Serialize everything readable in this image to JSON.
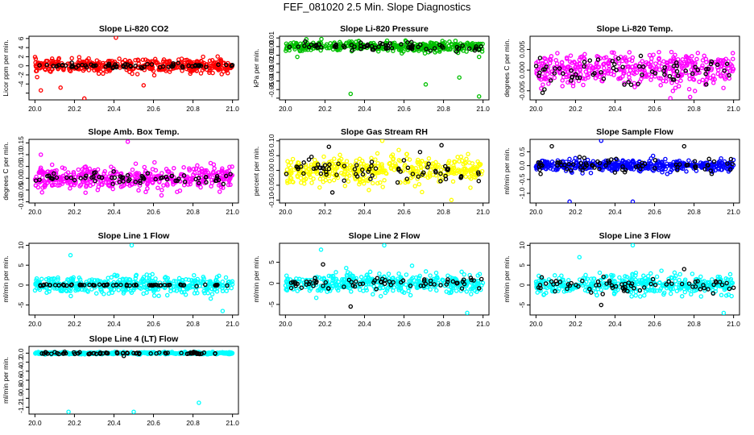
{
  "title": "FEF_081020  2.5 Min. Slope Diagnostics",
  "chart_data": [
    {
      "type": "scatter",
      "title": "Slope Li-820 CO2",
      "ylabel": "Licor ppm per min.",
      "xlim": [
        19.97,
        21.03
      ],
      "ylim": [
        -7.5,
        6.5
      ],
      "xticks": [
        20.0,
        20.2,
        20.4,
        20.6,
        20.8,
        21.0
      ],
      "yticks": [
        -6,
        -4,
        -2,
        0,
        2,
        4,
        6
      ],
      "ytick_labels": [
        "",
        "-4",
        "-2",
        "0",
        "2",
        "4",
        "6"
      ],
      "main_color": "#ff0000",
      "main_spread": 1.3,
      "main_outliers": [
        [
          20.25,
          -7.2
        ],
        [
          20.41,
          6.2
        ],
        [
          20.03,
          -5.4
        ],
        [
          20.13,
          -4.8
        ],
        [
          20.55,
          -4.3
        ]
      ],
      "black_spread": 0.5,
      "black_outliers": []
    },
    {
      "type": "scatter",
      "title": "Slope Li-820 Pressure",
      "ylabel": "kPa per min.",
      "xlim": [
        19.97,
        21.03
      ],
      "ylim": [
        -0.062,
        0.012
      ],
      "xticks": [
        20.0,
        20.2,
        20.4,
        20.6,
        20.8,
        21.0
      ],
      "yticks": [
        -0.06,
        -0.05,
        -0.04,
        -0.03,
        -0.02,
        -0.01,
        0.0,
        0.01
      ],
      "ytick_labels": [
        "",
        "-0.05",
        "-0.04",
        "-0.03",
        "-0.02",
        "-0.01",
        "0.00",
        "0.01"
      ],
      "main_color": "#00c000",
      "main_spread": 0.005,
      "main_outliers": [
        [
          20.33,
          -0.055
        ],
        [
          20.71,
          -0.044
        ],
        [
          20.98,
          -0.058
        ],
        [
          20.88,
          -0.036
        ],
        [
          20.06,
          -0.012
        ],
        [
          20.98,
          -0.012
        ]
      ],
      "black_spread": 0.004,
      "black_outliers": [
        [
          20.1,
          0.006
        ]
      ]
    },
    {
      "type": "scatter",
      "title": "Slope Li-820 Temp.",
      "ylabel": "degrees C per min.",
      "xlim": [
        19.97,
        21.03
      ],
      "ylim": [
        -0.0072,
        0.0082
      ],
      "xticks": [
        20.0,
        20.2,
        20.4,
        20.6,
        20.8,
        21.0
      ],
      "yticks": [
        -0.005,
        0.0,
        0.005
      ],
      "ytick_labels": [
        "-0.005",
        "0.000",
        "0.005"
      ],
      "main_color": "#ff00ff",
      "main_spread": 0.0035,
      "main_outliers": [
        [
          20.68,
          -0.0068
        ],
        [
          20.78,
          -0.0065
        ]
      ],
      "black_spread": 0.003,
      "black_outliers": []
    },
    {
      "type": "scatter",
      "title": "Slope Amb. Box Temp.",
      "ylabel": "degrees C per min.",
      "xlim": [
        19.97,
        21.03
      ],
      "ylim": [
        -0.105,
        0.165
      ],
      "xticks": [
        20.0,
        20.2,
        20.4,
        20.6,
        20.8,
        21.0
      ],
      "yticks": [
        -0.1,
        -0.05,
        0.0,
        0.05,
        0.1,
        0.15
      ],
      "ytick_labels": [
        "-0.10",
        "-0.05",
        "0.00",
        "0.05",
        "0.10",
        "0.15"
      ],
      "main_color": "#ff00ff",
      "main_spread": 0.045,
      "main_outliers": [
        [
          20.47,
          0.155
        ],
        [
          20.03,
          0.1
        ]
      ],
      "black_spread": 0.025,
      "black_outliers": []
    },
    {
      "type": "scatter",
      "title": "Slope Gas Stream RH",
      "ylabel": "percent per min.",
      "xlim": [
        19.97,
        21.03
      ],
      "ylim": [
        -0.11,
        0.105
      ],
      "xticks": [
        20.0,
        20.2,
        20.4,
        20.6,
        20.8,
        21.0
      ],
      "yticks": [
        -0.1,
        -0.05,
        0.0,
        0.05,
        0.1
      ],
      "ytick_labels": [
        "-0.10",
        "-0.05",
        "0.00",
        "0.05",
        "0.10"
      ],
      "main_color": "#ffff00",
      "main_spread": 0.04,
      "main_outliers": [
        [
          20.49,
          0.1
        ],
        [
          20.84,
          -0.1
        ]
      ],
      "black_spread": 0.04,
      "black_outliers": [
        [
          20.79,
          0.085
        ],
        [
          20.22,
          0.08
        ]
      ]
    },
    {
      "type": "scatter",
      "title": "Slope Sample Flow",
      "ylabel": "ml/min per min.",
      "xlim": [
        19.97,
        21.03
      ],
      "ylim": [
        -1.35,
        0.95
      ],
      "xticks": [
        20.0,
        20.2,
        20.4,
        20.6,
        20.8,
        21.0
      ],
      "yticks": [
        -1.0,
        -0.5,
        0.0,
        0.5
      ],
      "ytick_labels": [
        "-1.0",
        "-0.5",
        "0.0",
        "0.5"
      ],
      "main_color": "#0000ff",
      "main_spread": 0.18,
      "main_outliers": [
        [
          20.17,
          -1.3
        ],
        [
          20.33,
          0.9
        ],
        [
          20.49,
          -1.3
        ]
      ],
      "black_spread": 0.25,
      "black_outliers": [
        [
          20.08,
          0.7
        ],
        [
          20.75,
          0.7
        ]
      ]
    },
    {
      "type": "scatter",
      "title": "Slope Line 1 Flow",
      "ylabel": "ml/min per min.",
      "xlim": [
        19.97,
        21.03
      ],
      "ylim": [
        -7.5,
        10.5
      ],
      "xticks": [
        20.0,
        20.2,
        20.4,
        20.6,
        20.8,
        21.0
      ],
      "yticks": [
        -5,
        0,
        5,
        10
      ],
      "ytick_labels": [
        "-5",
        "0",
        "5",
        "10"
      ],
      "main_color": "#00ffff",
      "main_spread": 2.0,
      "main_outliers": [
        [
          20.49,
          10.0
        ],
        [
          20.18,
          7.5
        ],
        [
          20.95,
          -6.5
        ]
      ],
      "black_spread": 0.15,
      "black_outliers": []
    },
    {
      "type": "scatter",
      "title": "Slope Line 2 Flow",
      "ylabel": "ml/min per min.",
      "xlim": [
        19.97,
        21.03
      ],
      "ylim": [
        -7.5,
        9.5
      ],
      "xticks": [
        20.0,
        20.2,
        20.4,
        20.6,
        20.8,
        21.0
      ],
      "yticks": [
        -5,
        0,
        5
      ],
      "ytick_labels": [
        "-5",
        "0",
        "5"
      ],
      "main_color": "#00ffff",
      "main_spread": 2.0,
      "main_outliers": [
        [
          20.5,
          9.0
        ],
        [
          20.18,
          8.0
        ],
        [
          20.92,
          -7.0
        ]
      ],
      "black_spread": 1.5,
      "black_outliers": [
        [
          20.33,
          -5.5
        ],
        [
          20.19,
          4.5
        ]
      ]
    },
    {
      "type": "scatter",
      "title": "Slope Line 3 Flow",
      "ylabel": "ml/min per min.",
      "xlim": [
        19.97,
        21.03
      ],
      "ylim": [
        -7.5,
        10.5
      ],
      "xticks": [
        20.0,
        20.2,
        20.4,
        20.6,
        20.8,
        21.0
      ],
      "yticks": [
        -5,
        0,
        5,
        10
      ],
      "ytick_labels": [
        "-5",
        "0",
        "5",
        "10"
      ],
      "main_color": "#00ffff",
      "main_spread": 2.2,
      "main_outliers": [
        [
          20.49,
          10.0
        ],
        [
          20.22,
          7.0
        ],
        [
          20.95,
          -7.0
        ]
      ],
      "black_spread": 1.5,
      "black_outliers": [
        [
          20.33,
          -5.0
        ],
        [
          20.75,
          4.0
        ]
      ]
    },
    {
      "type": "scatter",
      "title": "Slope Line 4 (LT) Flow",
      "ylabel": "ml/min per min.",
      "xlim": [
        19.97,
        21.03
      ],
      "ylim": [
        -1.35,
        0.15
      ],
      "xticks": [
        20.0,
        20.2,
        20.4,
        20.6,
        20.8,
        21.0
      ],
      "yticks": [
        -1.2,
        -1.0,
        -0.8,
        -0.6,
        -0.4,
        -0.2,
        0.0
      ],
      "ytick_labels": [
        "-1.2",
        "-1.0",
        "-0.8",
        "-0.6",
        "-0.4",
        "-0.2",
        "0.0"
      ],
      "main_color": "#00ffff",
      "main_spread": 0.02,
      "main_outliers": [
        [
          20.17,
          -1.3
        ],
        [
          20.83,
          -1.1
        ],
        [
          20.5,
          -1.3
        ]
      ],
      "black_spread": 0.02,
      "black_outliers": [
        [
          20.45,
          -0.06
        ]
      ]
    }
  ]
}
